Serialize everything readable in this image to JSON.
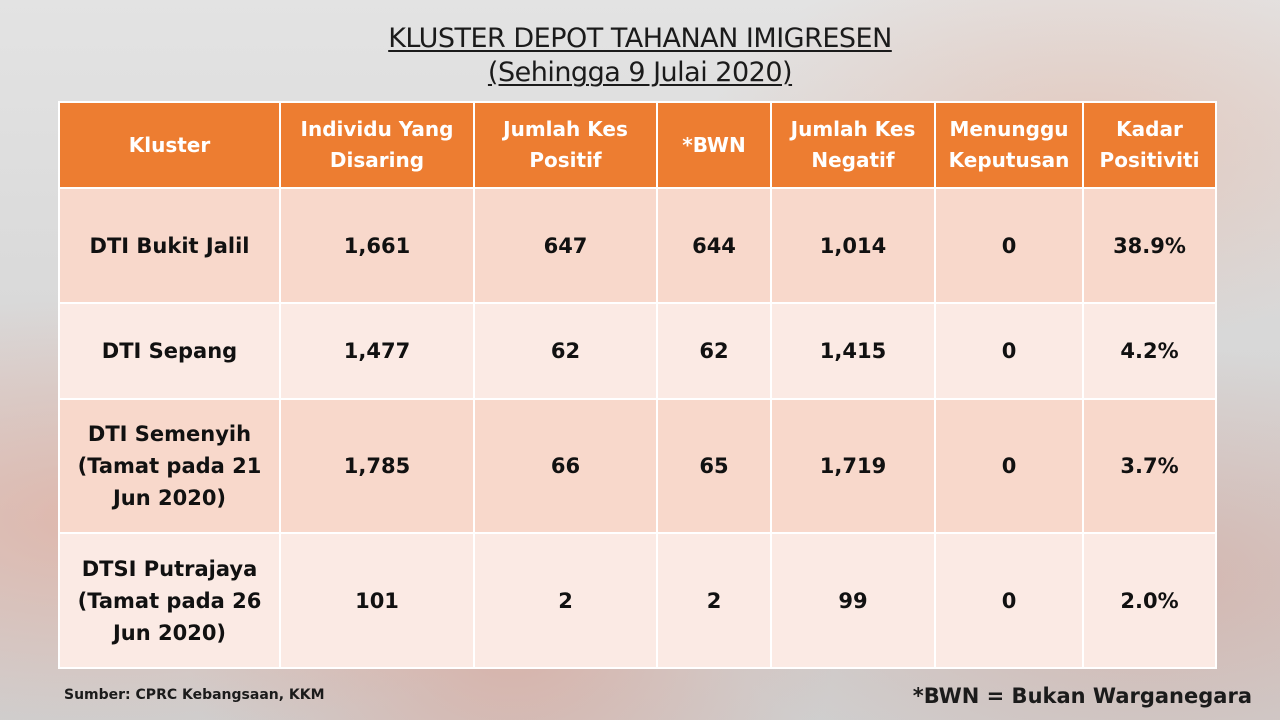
{
  "title": {
    "line1": "KLUSTER DEPOT TAHANAN IMIGRESEN",
    "line2": "(Sehingga 9 Julai 2020)"
  },
  "table": {
    "headers": [
      "Kluster",
      "Individu Yang Disaring",
      "Jumlah Kes Positif",
      "*BWN",
      "Jumlah Kes Negatif",
      "Menunggu Keputusan",
      "Kadar Positiviti"
    ],
    "rows": [
      [
        "DTI Bukit Jalil",
        "1,661",
        "647",
        "644",
        "1,014",
        "0",
        "38.9%"
      ],
      [
        "DTI Sepang",
        "1,477",
        "62",
        "62",
        "1,415",
        "0",
        "4.2%"
      ],
      [
        "DTI Semenyih (Tamat pada 21 Jun 2020)",
        "1,785",
        "66",
        "65",
        "1,719",
        "0",
        "3.7%"
      ],
      [
        "DTSI Putrajaya (Tamat pada 26 Jun 2020)",
        "101",
        "2",
        "2",
        "99",
        "0",
        "2.0%"
      ]
    ]
  },
  "footer": {
    "source": "Sumber: CPRC Kebangsaan, KKM",
    "note": "*BWN = Bukan Warganegara"
  },
  "colors": {
    "header_bg": "#ed7d31",
    "row_odd_bg": "#f8d8cb",
    "row_even_bg": "#fbeae4"
  }
}
